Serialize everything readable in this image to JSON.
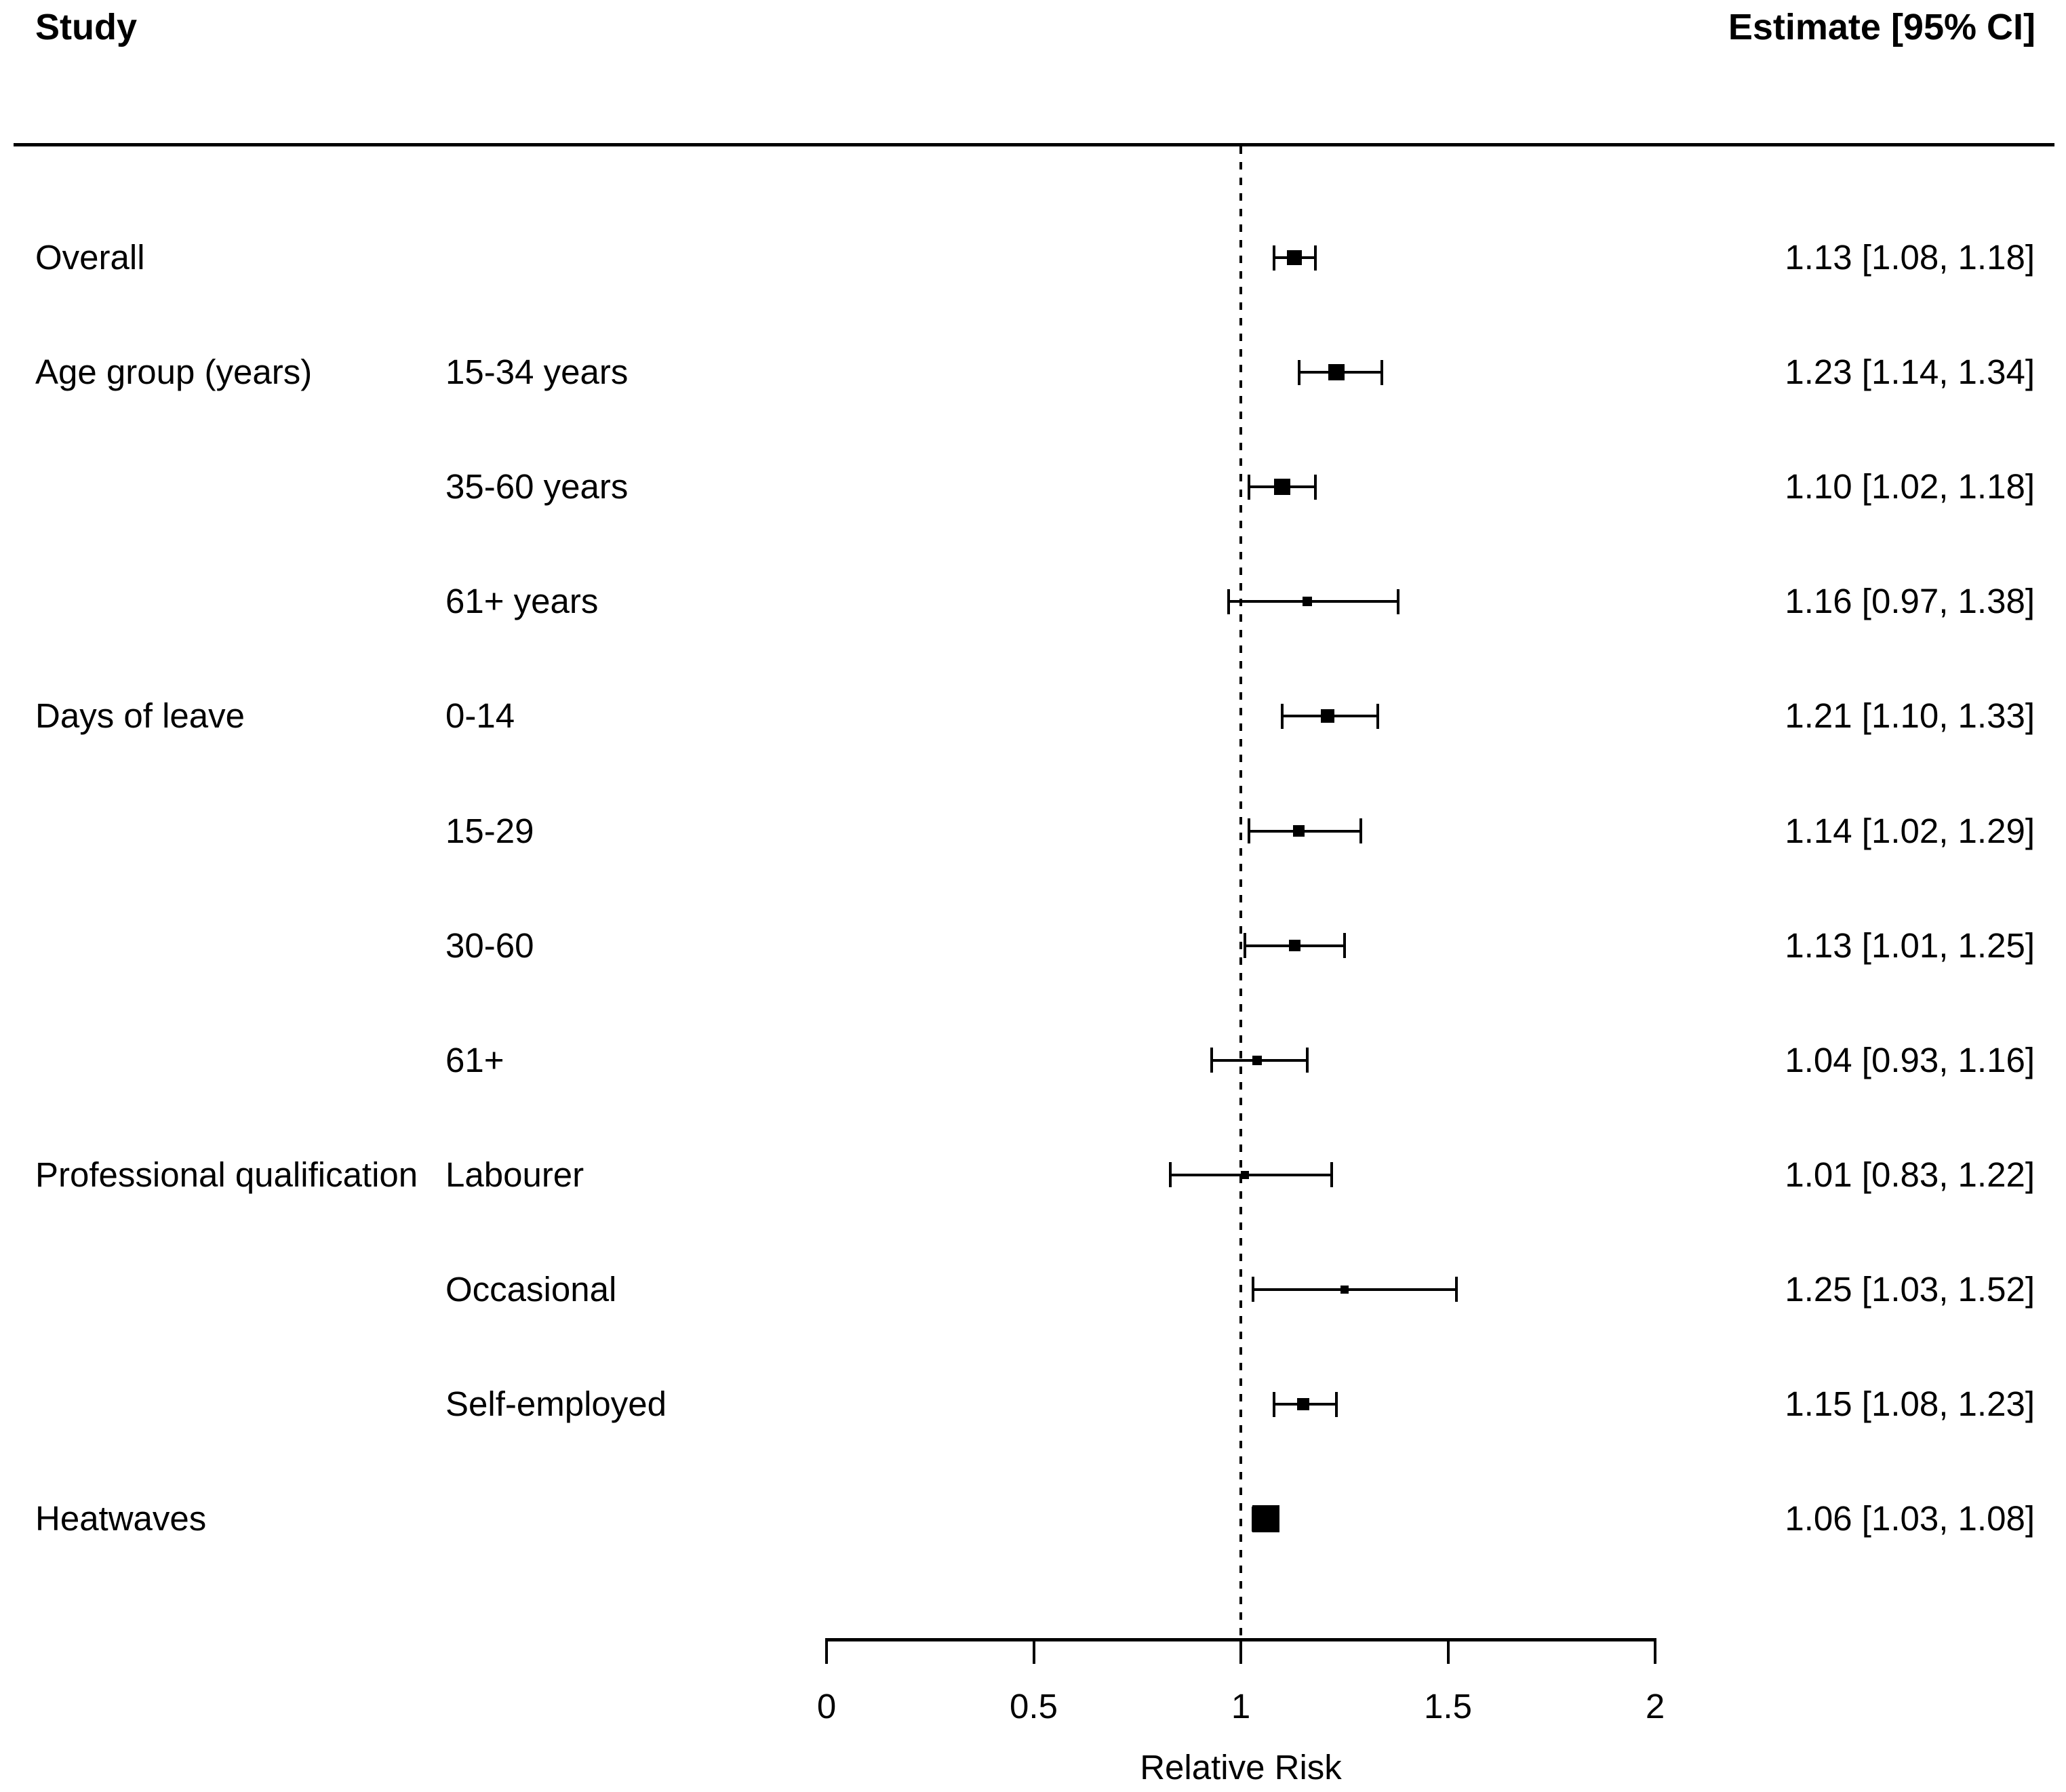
{
  "header": {
    "study_label": "Study",
    "estimate_label": "Estimate [95% CI]"
  },
  "colors": {
    "foreground": "#000000",
    "background": "#ffffff"
  },
  "chart_data": {
    "type": "forest",
    "xlabel": "Relative Risk",
    "x_axis": {
      "min": 0,
      "max": 2,
      "ticks": [
        0,
        0.5,
        1,
        1.5,
        2
      ],
      "tick_labels": [
        "0",
        "0.5",
        "1",
        "1.5",
        "2"
      ],
      "reference_line": 1
    },
    "rows": [
      {
        "group": "Overall",
        "subgroup": "",
        "estimate": 1.13,
        "ci_low": 1.08,
        "ci_high": 1.18,
        "estimate_label": "1.13 [1.08, 1.18]",
        "marker_size": 22
      },
      {
        "group": "Age group (years)",
        "subgroup": "15-34 years",
        "estimate": 1.23,
        "ci_low": 1.14,
        "ci_high": 1.34,
        "estimate_label": "1.23 [1.14, 1.34]",
        "marker_size": 24
      },
      {
        "group": "",
        "subgroup": "35-60 years",
        "estimate": 1.1,
        "ci_low": 1.02,
        "ci_high": 1.18,
        "estimate_label": "1.10 [1.02, 1.18]",
        "marker_size": 24
      },
      {
        "group": "",
        "subgroup": "61+ years",
        "estimate": 1.16,
        "ci_low": 0.97,
        "ci_high": 1.38,
        "estimate_label": "1.16 [0.97, 1.38]",
        "marker_size": 14
      },
      {
        "group": "Days of leave",
        "subgroup": "0-14",
        "estimate": 1.21,
        "ci_low": 1.1,
        "ci_high": 1.33,
        "estimate_label": "1.21 [1.10, 1.33]",
        "marker_size": 20
      },
      {
        "group": "",
        "subgroup": "15-29",
        "estimate": 1.14,
        "ci_low": 1.02,
        "ci_high": 1.29,
        "estimate_label": "1.14 [1.02, 1.29]",
        "marker_size": 17
      },
      {
        "group": "",
        "subgroup": "30-60",
        "estimate": 1.13,
        "ci_low": 1.01,
        "ci_high": 1.25,
        "estimate_label": "1.13 [1.01, 1.25]",
        "marker_size": 17
      },
      {
        "group": "",
        "subgroup": "61+",
        "estimate": 1.04,
        "ci_low": 0.93,
        "ci_high": 1.16,
        "estimate_label": "1.04 [0.93, 1.16]",
        "marker_size": 14
      },
      {
        "group": "Professional qualification",
        "subgroup": "Labourer",
        "estimate": 1.01,
        "ci_low": 0.83,
        "ci_high": 1.22,
        "estimate_label": "1.01 [0.83, 1.22]",
        "marker_size": 12
      },
      {
        "group": "",
        "subgroup": "Occasional",
        "estimate": 1.25,
        "ci_low": 1.03,
        "ci_high": 1.52,
        "estimate_label": "1.25 [1.03, 1.52]",
        "marker_size": 12
      },
      {
        "group": "",
        "subgroup": "Self-employed",
        "estimate": 1.15,
        "ci_low": 1.08,
        "ci_high": 1.23,
        "estimate_label": "1.15 [1.08, 1.23]",
        "marker_size": 18
      },
      {
        "group": "Heatwaves",
        "subgroup": "",
        "estimate": 1.06,
        "ci_low": 1.03,
        "ci_high": 1.08,
        "estimate_label": "1.06 [1.03, 1.08]",
        "marker_size": 40
      }
    ]
  }
}
